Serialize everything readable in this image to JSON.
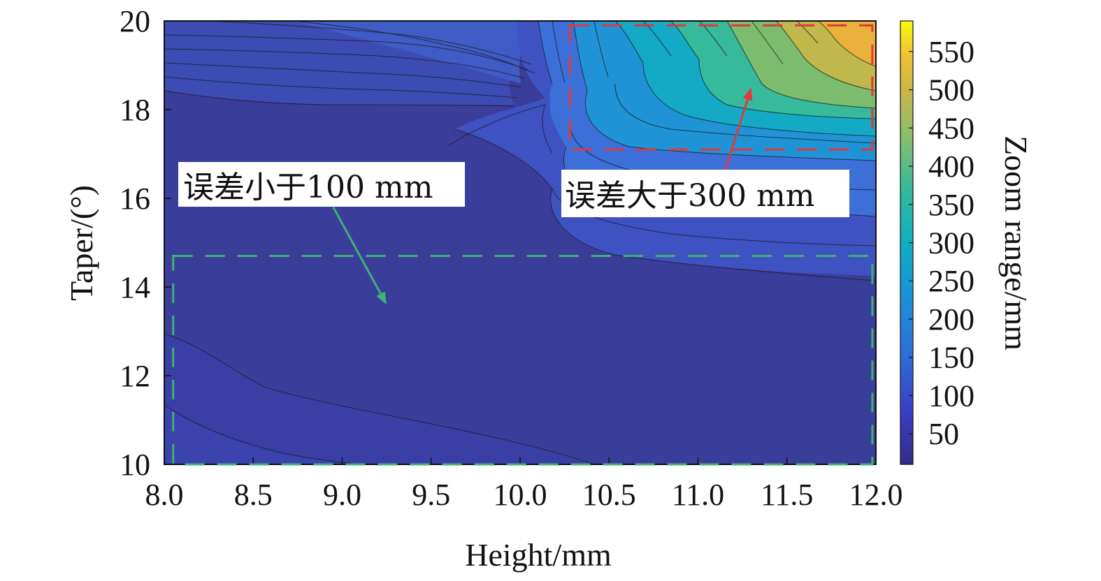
{
  "chart_data": {
    "type": "heatmap",
    "subtype": "filled-contour",
    "xlabel": "Height/mm",
    "ylabel": "Taper/(°)",
    "colorbar_label": "Zoom range/mm",
    "xlim": [
      8.0,
      12.0
    ],
    "ylim": [
      10,
      20
    ],
    "xticks": [
      "8.0",
      "8.5",
      "9.0",
      "9.5",
      "10.0",
      "10.5",
      "11.0",
      "11.5",
      "12.0"
    ],
    "yticks": [
      "10",
      "12",
      "14",
      "16",
      "18",
      "20"
    ],
    "colorbar": {
      "range": [
        10,
        590
      ],
      "ticks": [
        "50",
        "100",
        "150",
        "200",
        "250",
        "300",
        "350",
        "400",
        "450",
        "500",
        "550"
      ],
      "colormap": "parula"
    },
    "grid": false,
    "annotations": [
      {
        "name": "error-small",
        "text": "误差小于100 mm",
        "color": "#3cb371",
        "region": {
          "x": [
            8.05,
            11.98
          ],
          "y": [
            10.0,
            14.7
          ]
        },
        "arrow_from": [
          8.95,
          15.8
        ],
        "arrow_to": [
          9.25,
          13.6
        ]
      },
      {
        "name": "error-large",
        "text": "误差大于300 mm",
        "color": "#e0393e",
        "region": {
          "x": [
            10.28,
            11.98
          ],
          "y": [
            17.1,
            19.9
          ]
        },
        "arrow_from": [
          11.15,
          16.6
        ],
        "arrow_to": [
          11.3,
          18.5
        ]
      }
    ],
    "series": [
      {
        "x": [
          8.0,
          9.0,
          10.0,
          10.5,
          11.0,
          11.5,
          12.0
        ],
        "y": 20,
        "values": [
          170,
          150,
          150,
          260,
          380,
          520,
          560
        ]
      },
      {
        "x": [
          8.0,
          9.0,
          10.0,
          10.5,
          11.0,
          11.5,
          12.0
        ],
        "y": 19,
        "values": [
          110,
          90,
          110,
          230,
          330,
          410,
          480
        ]
      },
      {
        "x": [
          8.0,
          9.0,
          10.0,
          10.5,
          11.0,
          11.5,
          12.0
        ],
        "y": 18,
        "values": [
          40,
          40,
          70,
          200,
          350,
          360,
          370
        ]
      },
      {
        "x": [
          8.0,
          9.0,
          10.0,
          10.5,
          11.0,
          11.5,
          12.0
        ],
        "y": 17,
        "values": [
          35,
          35,
          40,
          80,
          140,
          170,
          190
        ]
      },
      {
        "x": [
          8.0,
          9.0,
          10.0,
          10.5,
          11.0,
          11.5,
          12.0
        ],
        "y": 15,
        "values": [
          30,
          30,
          30,
          35,
          40,
          45,
          50
        ]
      },
      {
        "x": [
          8.0,
          9.0,
          10.0,
          10.5,
          11.0,
          11.5,
          12.0
        ],
        "y": 12,
        "values": [
          25,
          20,
          20,
          20,
          20,
          20,
          20
        ]
      },
      {
        "x": [
          8.0,
          9.0,
          10.0,
          10.5,
          11.0,
          11.5,
          12.0
        ],
        "y": 10,
        "values": [
          35,
          25,
          15,
          10,
          10,
          10,
          10
        ]
      }
    ]
  }
}
